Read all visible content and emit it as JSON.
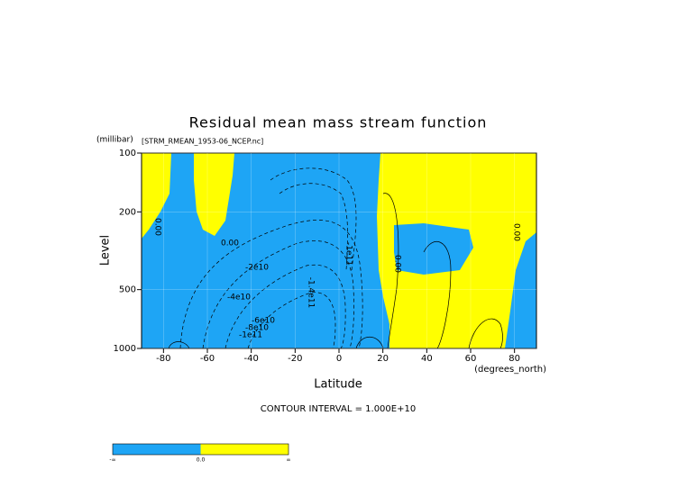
{
  "chart_data": {
    "type": "contour",
    "title": "Residual mean mass stream function",
    "subtitle": "[STRM_RMEAN_1953-06_NCEP.nc]",
    "x_label": "Latitude",
    "x_unit": "(degrees_north)",
    "y_label": "Level",
    "y_unit": "(millibar)",
    "xlim": [
      -90,
      90
    ],
    "xticks": [
      -80,
      -60,
      -40,
      -20,
      0,
      20,
      40,
      60,
      80
    ],
    "ylim": [
      1000,
      100
    ],
    "yticks": [
      100,
      200,
      500,
      1000
    ],
    "y_log": true,
    "note": "CONTOUR INTERVAL = 1.000E+10",
    "contour_labels": [
      "0.00",
      "0.00",
      "-2e10",
      "-4e10",
      "-6e10",
      "-8e10",
      "-1e11",
      "-1.4e11",
      "-1e11",
      "0.00",
      "0.00"
    ],
    "colorbar": {
      "colors": [
        "#1ea5f5",
        "#ffff00"
      ],
      "labels": [
        "-∞",
        "0.0",
        "∞"
      ]
    }
  }
}
